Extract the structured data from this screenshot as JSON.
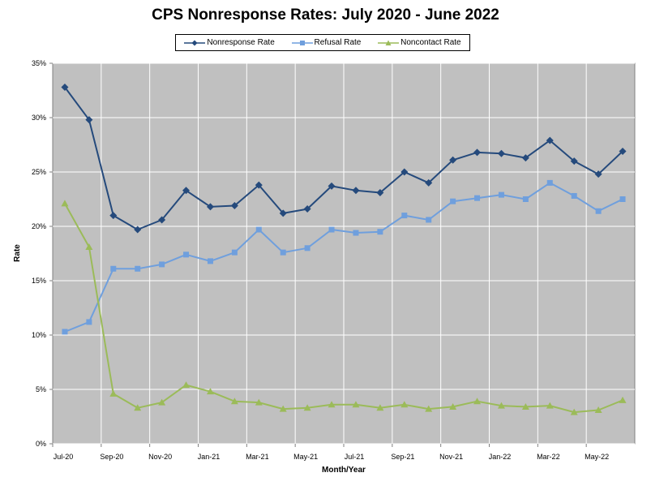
{
  "chart_data": {
    "type": "line",
    "title": "CPS Nonresponse Rates: July 2020 - June 2022",
    "xlabel": "Month/Year",
    "ylabel": "Rate",
    "ylim": [
      0,
      35
    ],
    "y_ticks": [
      "0%",
      "5%",
      "10%",
      "15%",
      "20%",
      "25%",
      "30%",
      "35%"
    ],
    "x_tick_labels": [
      "Jul-20",
      "Sep-20",
      "Nov-20",
      "Jan-21",
      "Mar-21",
      "May-21",
      "Jul-21",
      "Sep-21",
      "Nov-21",
      "Jan-22",
      "Mar-22",
      "May-22"
    ],
    "categories": [
      "Jul-20",
      "Aug-20",
      "Sep-20",
      "Oct-20",
      "Nov-20",
      "Dec-20",
      "Jan-21",
      "Feb-21",
      "Mar-21",
      "Apr-21",
      "May-21",
      "Jun-21",
      "Jul-21",
      "Aug-21",
      "Sep-21",
      "Oct-21",
      "Nov-21",
      "Dec-21",
      "Jan-22",
      "Feb-22",
      "Mar-22",
      "Apr-22",
      "May-22",
      "Jun-22"
    ],
    "grid": true,
    "legend_position": "top",
    "series": [
      {
        "name": "Nonresponse Rate",
        "color": "#254a7c",
        "marker": "diamond",
        "values": [
          32.8,
          29.8,
          21.0,
          19.7,
          20.6,
          23.3,
          21.8,
          21.9,
          23.8,
          21.2,
          21.6,
          23.7,
          23.3,
          23.1,
          25.0,
          24.0,
          26.1,
          26.8,
          26.7,
          26.3,
          27.9,
          26.0,
          24.8,
          26.9
        ]
      },
      {
        "name": "Refusal Rate",
        "color": "#6f9fdd",
        "marker": "square",
        "values": [
          10.3,
          11.2,
          16.1,
          16.1,
          16.5,
          17.4,
          16.8,
          17.6,
          19.7,
          17.6,
          18.0,
          19.7,
          19.4,
          19.5,
          21.0,
          20.6,
          22.3,
          22.6,
          22.9,
          22.5,
          24.0,
          22.8,
          21.4,
          22.5
        ]
      },
      {
        "name": "Noncontact Rate",
        "color": "#9bbb59",
        "marker": "triangle",
        "values": [
          22.1,
          18.1,
          4.6,
          3.3,
          3.8,
          5.4,
          4.8,
          3.9,
          3.8,
          3.2,
          3.3,
          3.6,
          3.6,
          3.3,
          3.6,
          3.2,
          3.4,
          3.9,
          3.5,
          3.4,
          3.5,
          2.9,
          3.1,
          4.0
        ]
      }
    ]
  }
}
